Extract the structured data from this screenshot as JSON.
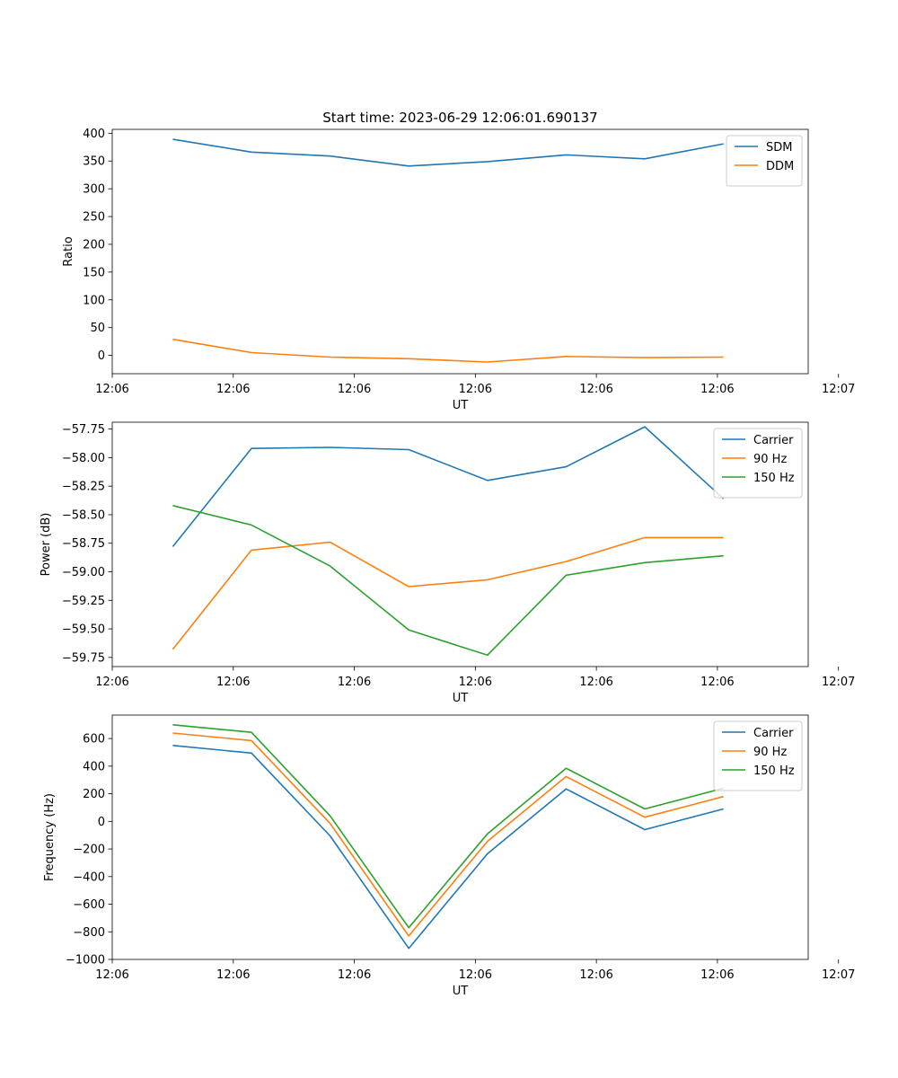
{
  "figure": {
    "title": "Start time: 2023-06-29 12:06:01.690137"
  },
  "chart_data": [
    {
      "type": "line",
      "title": "Start time: 2023-06-29 12:06:01.690137",
      "xlabel": "UT",
      "ylabel": "Ratio",
      "xlim": [
        0,
        11.5
      ],
      "ylim": [
        -33,
        407
      ],
      "x": [
        1,
        2.3,
        3.6,
        4.9,
        6.2,
        7.5,
        8.8,
        10.1
      ],
      "xticks": [
        0,
        2,
        4,
        6,
        8,
        10,
        12
      ],
      "xtick_labels": [
        "12:06",
        "12:06",
        "12:06",
        "12:06",
        "12:06",
        "12:06",
        "12:07"
      ],
      "yticks": [
        0,
        50,
        100,
        150,
        200,
        250,
        300,
        350,
        400
      ],
      "ytick_labels": [
        "0",
        "50",
        "100",
        "150",
        "200",
        "250",
        "300",
        "350",
        "400"
      ],
      "legend_position": "top-right",
      "grid": false,
      "series": [
        {
          "name": "SDM",
          "color": "#1f77b4",
          "values": [
            389,
            366,
            359,
            341,
            349,
            361,
            354,
            381
          ]
        },
        {
          "name": "DDM",
          "color": "#ff7f0e",
          "values": [
            29,
            5,
            -3,
            -6,
            -12,
            -2,
            -4,
            -3
          ]
        }
      ]
    },
    {
      "type": "line",
      "xlabel": "UT",
      "ylabel": "Power (dB)",
      "xlim": [
        0,
        11.5
      ],
      "ylim": [
        -59.83,
        -57.69
      ],
      "x": [
        1,
        2.3,
        3.6,
        4.9,
        6.2,
        7.5,
        8.8,
        10.1
      ],
      "xticks": [
        0,
        2,
        4,
        6,
        8,
        10,
        12
      ],
      "xtick_labels": [
        "12:06",
        "12:06",
        "12:06",
        "12:06",
        "12:06",
        "12:06",
        "12:07"
      ],
      "yticks": [
        -59.75,
        -59.5,
        -59.25,
        -59.0,
        -58.75,
        -58.5,
        -58.25,
        -58.0,
        -57.75
      ],
      "ytick_labels": [
        "−59.75",
        "−59.50",
        "−59.25",
        "−59.00",
        "−58.75",
        "−58.50",
        "−58.25",
        "−58.00",
        "−57.75"
      ],
      "legend_position": "top-right",
      "grid": false,
      "series": [
        {
          "name": "Carrier",
          "color": "#1f77b4",
          "values": [
            -58.78,
            -57.92,
            -57.91,
            -57.93,
            -58.2,
            -58.08,
            -57.73,
            -58.36
          ]
        },
        {
          "name": "90 Hz",
          "color": "#ff7f0e",
          "values": [
            -59.68,
            -58.81,
            -58.74,
            -59.13,
            -59.07,
            -58.91,
            -58.7,
            -58.7
          ]
        },
        {
          "name": "150 Hz",
          "color": "#2ca02c",
          "values": [
            -58.42,
            -58.59,
            -58.95,
            -59.51,
            -59.73,
            -59.03,
            -58.92,
            -58.86
          ]
        }
      ]
    },
    {
      "type": "line",
      "xlabel": "UT",
      "ylabel": "Frequency (Hz)",
      "xlim": [
        0,
        11.5
      ],
      "ylim": [
        -1000,
        770
      ],
      "x": [
        1,
        2.3,
        3.6,
        4.9,
        6.2,
        7.5,
        8.8,
        10.1
      ],
      "xticks": [
        0,
        2,
        4,
        6,
        8,
        10,
        12
      ],
      "xtick_labels": [
        "12:06",
        "12:06",
        "12:06",
        "12:06",
        "12:06",
        "12:06",
        "12:07"
      ],
      "yticks": [
        -1000,
        -800,
        -600,
        -400,
        -200,
        0,
        200,
        400,
        600
      ],
      "ytick_labels": [
        "−1000",
        "−800",
        "−600",
        "−400",
        "−200",
        "0",
        "200",
        "400",
        "600"
      ],
      "legend_position": "top-right",
      "grid": false,
      "series": [
        {
          "name": "Carrier",
          "color": "#1f77b4",
          "values": [
            550,
            495,
            -105,
            -920,
            -235,
            235,
            -60,
            90
          ]
        },
        {
          "name": "90 Hz",
          "color": "#ff7f0e",
          "values": [
            640,
            585,
            -15,
            -830,
            -145,
            325,
            30,
            180
          ]
        },
        {
          "name": "150 Hz",
          "color": "#2ca02c",
          "values": [
            700,
            645,
            40,
            -770,
            -90,
            385,
            90,
            240
          ]
        }
      ]
    }
  ]
}
